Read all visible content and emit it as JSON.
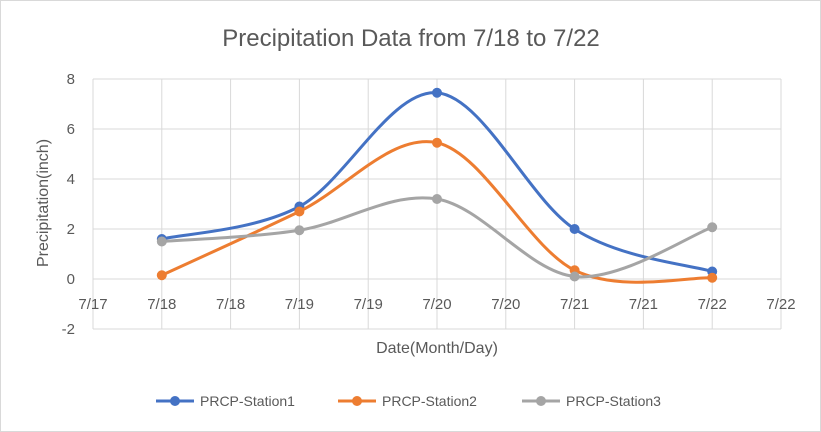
{
  "chart_data": {
    "type": "line",
    "title": "Precipitation Data from 7/18 to 7/22",
    "xlabel": "Date(Month/Day)",
    "ylabel": "Precipitation(inch)",
    "smoothed": true,
    "markers": "circle",
    "grid": true,
    "legend_position": "bottom",
    "x_ticks": [
      "7/17",
      "7/18",
      "7/18",
      "7/19",
      "7/19",
      "7/20",
      "7/20",
      "7/21",
      "7/21",
      "7/22",
      "7/22"
    ],
    "y_ticks": [
      "-2",
      "0",
      "2",
      "4",
      "6",
      "8"
    ],
    "ylim": [
      -2,
      8
    ],
    "categories": [
      "7/18",
      "7/19",
      "7/20",
      "7/21",
      "7/22"
    ],
    "series": [
      {
        "name": "PRCP-Station1",
        "color": "#4472C4",
        "values": [
          1.6,
          2.9,
          7.45,
          2.0,
          0.3
        ]
      },
      {
        "name": "PRCP-Station2",
        "color": "#ED7D31",
        "values": [
          0.15,
          2.7,
          5.45,
          0.35,
          0.05
        ]
      },
      {
        "name": "PRCP-Station3",
        "color": "#A5A5A5",
        "values": [
          1.5,
          1.95,
          3.2,
          0.1,
          2.07
        ]
      }
    ]
  }
}
